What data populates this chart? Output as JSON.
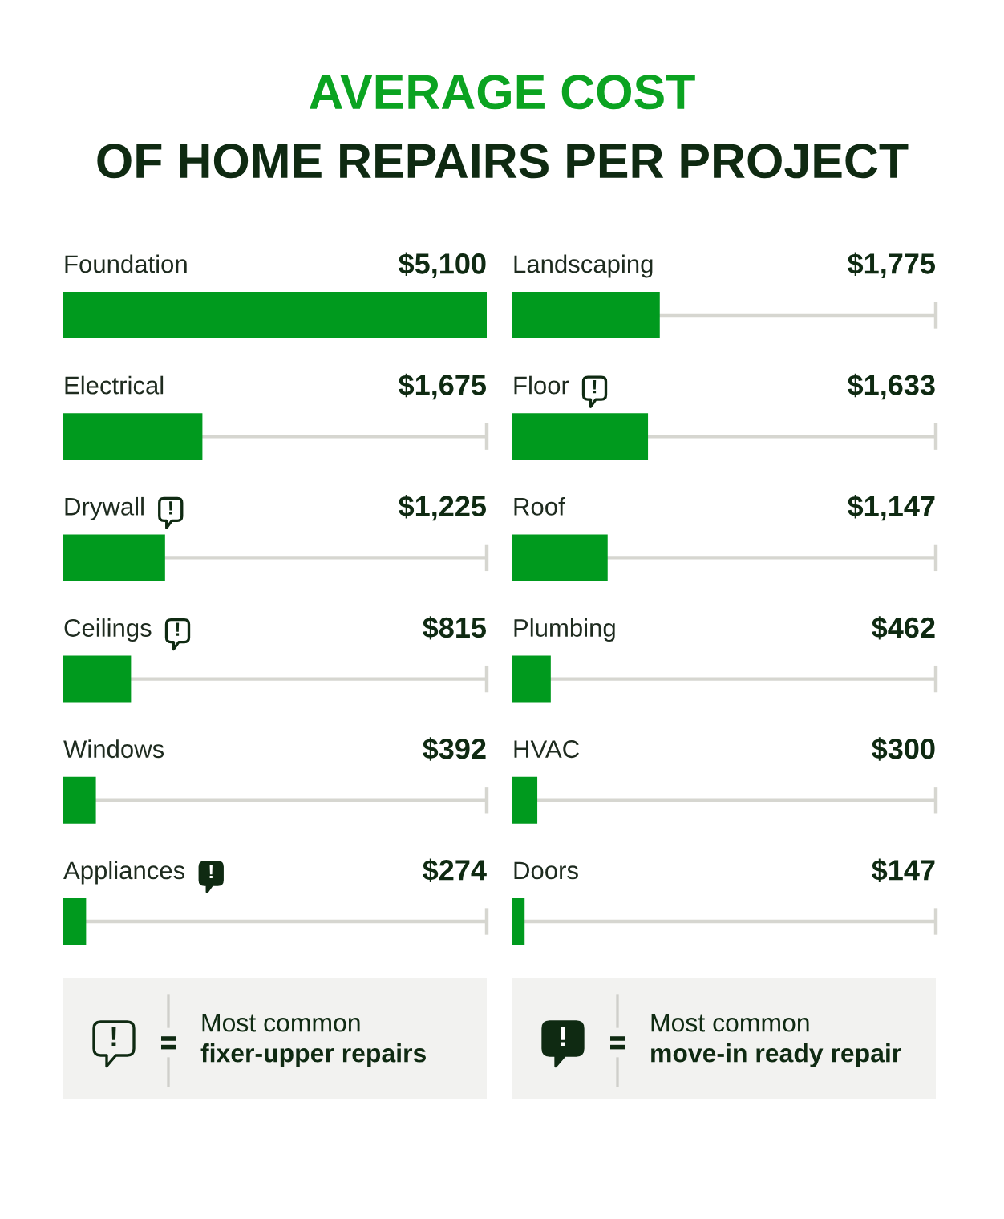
{
  "chart_data": [
    {
      "type": "bar",
      "orientation": "horizontal",
      "title": "AVERAGE COST\nOF HOME REPAIRS PER PROJECT",
      "categories": [
        "Foundation",
        "Electrical",
        "Drywall",
        "Ceilings",
        "Windows",
        "Appliances"
      ],
      "values": [
        5100,
        1675,
        1225,
        815,
        392,
        274
      ],
      "value_labels": [
        "$5,100",
        "$1,675",
        "$1,225",
        "$815",
        "$392",
        "$274"
      ],
      "color": "#009a1e",
      "xlim": [
        0,
        5100
      ],
      "grid": "y",
      "annotations": [
        "Most common\nfixer-upper repairs",
        "!",
        "!",
        "Most common\nmove-in ready repair",
        "!"
      ]
    },
    {
      "type": "bar",
      "orientation": "horizontal",
      "categories": [
        "Landscaping",
        "Floor",
        "Roof",
        "Plumbing",
        "HVAC",
        "Doors"
      ],
      "values": [
        1775,
        1633,
        1147,
        462,
        300,
        147
      ],
      "value_labels": [
        "$1,775",
        "$1,633",
        "$1,147",
        "$462",
        "$300",
        "$147"
      ],
      "color": "#009a1e",
      "xlim": [
        0,
        5100
      ],
      "grid": "y",
      "annotations": [
        "!"
      ]
    }
  ]
}
